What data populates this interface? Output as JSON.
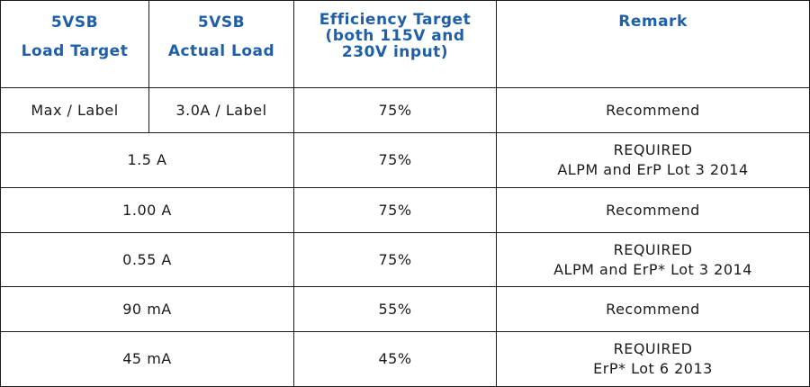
{
  "header": {
    "load_target": [
      "5VSB",
      "Load Target"
    ],
    "actual_load": [
      "5VSB",
      "Actual Load"
    ],
    "efficiency": [
      "Efficiency Target",
      "(both 115V and",
      "230V input)"
    ],
    "remark": "Remark"
  },
  "rows": [
    {
      "load_target": "Max / Label",
      "actual_load": "3.0A / Label",
      "efficiency": "75%",
      "remark": [
        "Recommend"
      ]
    },
    {
      "load": "1.5 A",
      "efficiency": "75%",
      "remark": [
        "REQUIRED",
        "ALPM and ErP Lot 3 2014"
      ]
    },
    {
      "load": "1.00 A",
      "efficiency": "75%",
      "remark": [
        "Recommend"
      ]
    },
    {
      "load": "0.55 A",
      "efficiency": "75%",
      "remark": [
        "REQUIRED",
        "ALPM and ErP* Lot 3 2014"
      ]
    },
    {
      "load": "90 mA",
      "efficiency": "55%",
      "remark": [
        "Recommend"
      ]
    },
    {
      "load": "45 mA",
      "efficiency": "45%",
      "remark": [
        "REQUIRED",
        "ErP* Lot 6 2013"
      ]
    }
  ]
}
